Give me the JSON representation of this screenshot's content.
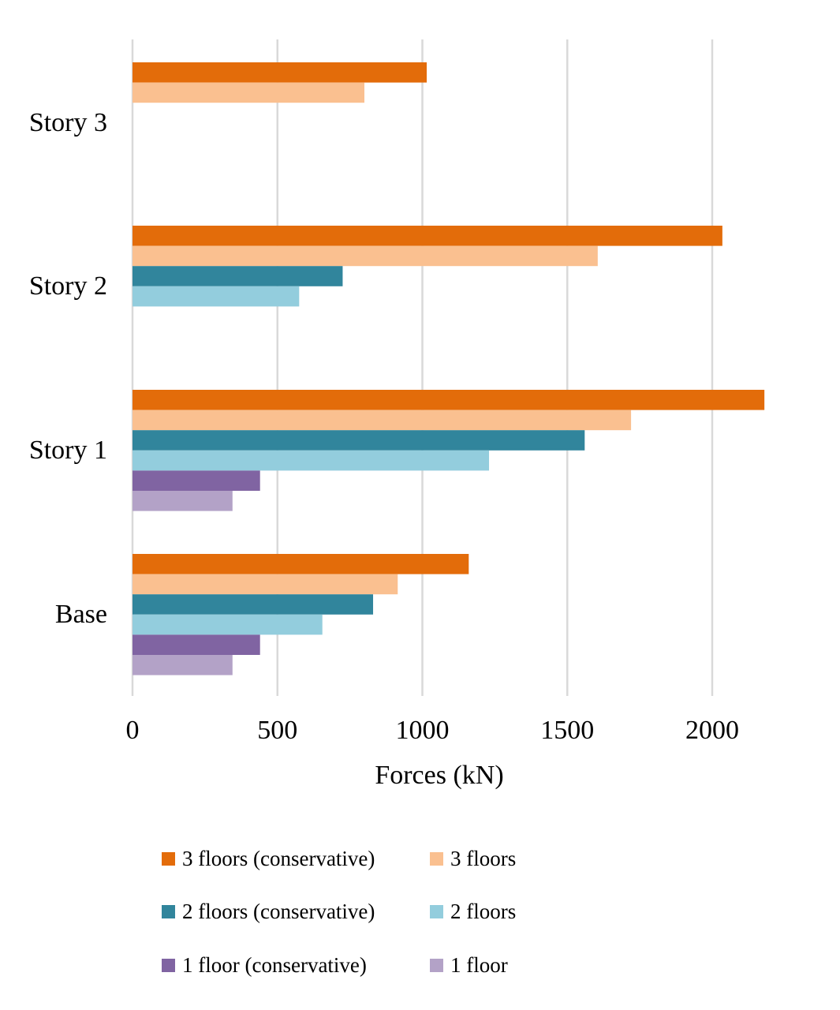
{
  "chart_data": {
    "type": "bar",
    "orientation": "horizontal",
    "categories": [
      "Base",
      "Story 1",
      "Story 2",
      "Story 3"
    ],
    "series": [
      {
        "name": "3 floors (conservative)",
        "color": "#E36C0A",
        "values": [
          1160,
          2180,
          2035,
          1015
        ]
      },
      {
        "name": "3 floors",
        "color": "#FAC090",
        "values": [
          915,
          1720,
          1605,
          800
        ]
      },
      {
        "name": "2 floors (conservative)",
        "color": "#31859C",
        "values": [
          830,
          1560,
          725,
          null
        ]
      },
      {
        "name": "2 floors",
        "color": "#93CDDD",
        "values": [
          655,
          1230,
          575,
          null
        ]
      },
      {
        "name": "1 floor (conservative)",
        "color": "#8064A2",
        "values": [
          440,
          440,
          null,
          null
        ]
      },
      {
        "name": "1 floor",
        "color": "#B3A2C7",
        "values": [
          345,
          345,
          null,
          null
        ]
      }
    ],
    "xlabel": "Forces (kN)",
    "ylabel": "",
    "xlim": [
      0,
      2250
    ],
    "xticks": [
      0,
      500,
      1000,
      1500,
      2000
    ],
    "grid": true,
    "legend_position": "bottom"
  }
}
